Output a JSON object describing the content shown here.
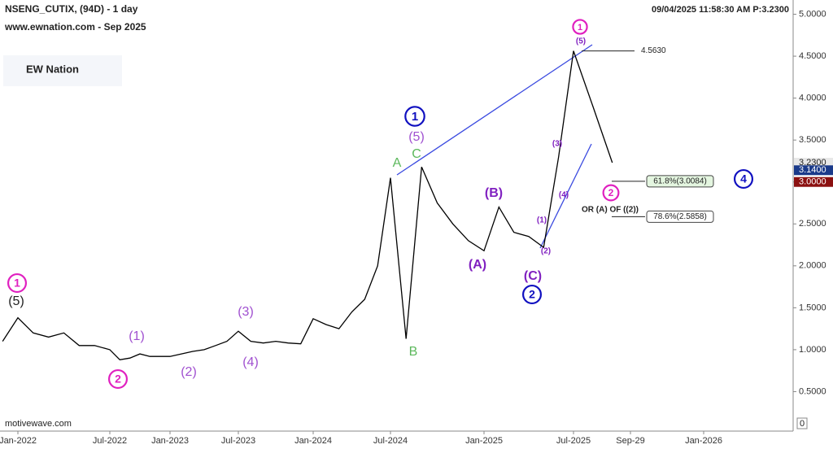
{
  "header": {
    "symbol": "NSENG_CUTIX, (94D) - 1 day",
    "site": "www.ewnation.com  - Sep 2025",
    "logo": "EW Nation",
    "timestamp": "09/04/2025 11:58:30 AM  P:3.2300",
    "footer": "motivewave.com",
    "volume_axis": "0"
  },
  "chart_data": {
    "type": "line",
    "color": "#000000",
    "x": [
      "2021-12",
      "2022-01",
      "2022-02",
      "2022-03",
      "2022-04",
      "2022-05",
      "2022-06",
      "2022-07",
      "2022-08",
      "2022-09",
      "2022-10",
      "2022-11",
      "2022-12",
      "2023-01",
      "2023-02",
      "2023-03",
      "2023-04",
      "2023-05",
      "2023-06",
      "2023-07",
      "2023-08",
      "2023-09",
      "2023-10",
      "2023-11",
      "2023-12",
      "2024-01",
      "2024-02",
      "2024-03",
      "2024-04",
      "2024-05",
      "2024-06",
      "2024-07",
      "2024-08",
      "2024-09",
      "2024-10",
      "2024-11",
      "2024-12",
      "2025-01",
      "2025-02",
      "2025-03",
      "2025-04",
      "2025-05",
      "2025-06",
      "2025-07",
      "2025-08",
      "2025-09"
    ],
    "values": [
      1.1,
      1.38,
      1.2,
      1.15,
      1.2,
      1.05,
      1.05,
      1.0,
      0.88,
      0.9,
      0.95,
      0.92,
      0.92,
      0.92,
      0.95,
      0.98,
      1.0,
      1.05,
      1.1,
      1.22,
      1.1,
      1.08,
      1.1,
      1.08,
      1.07,
      1.37,
      1.3,
      1.25,
      1.45,
      1.6,
      2.0,
      3.05,
      1.13,
      3.18,
      2.75,
      2.5,
      2.3,
      2.18,
      2.7,
      2.4,
      2.35,
      2.22,
      3.3,
      4.563,
      3.9,
      3.23
    ],
    "ylim": [
      0,
      5.17
    ],
    "yticks": [
      {
        "value": 0.5,
        "label": "0.5000"
      },
      {
        "value": 1,
        "label": "1.0000"
      },
      {
        "value": 1.5,
        "label": "1.5000"
      },
      {
        "value": 2,
        "label": "2.0000"
      },
      {
        "value": 2.5,
        "label": "2.5000"
      },
      {
        "value": 3,
        "label": "3.0000"
      },
      {
        "value": 3.5,
        "label": "3.5000"
      },
      {
        "value": 4,
        "label": "4.0000"
      },
      {
        "value": 4.5,
        "label": "4.5000"
      },
      {
        "value": 5,
        "label": "5.0000"
      }
    ],
    "xticks": [
      {
        "value": "2022-01",
        "label": "Jan-2022"
      },
      {
        "value": "2022-07",
        "label": "Jul-2022"
      },
      {
        "value": "2023-01",
        "label": "Jan-2023"
      },
      {
        "value": "2023-07",
        "label": "Jul-2023"
      },
      {
        "value": "2024-01",
        "label": "Jan-2024"
      },
      {
        "value": "2024-07",
        "label": "Jul-2024"
      },
      {
        "value": "2025-01",
        "label": "Jan-2025"
      },
      {
        "value": "2025-07",
        "label": "Jul-2025"
      },
      {
        "value": "2025-09-29",
        "label": "Sep-29"
      },
      {
        "value": "2026-01",
        "label": "Jan-2026"
      }
    ],
    "levels": [
      {
        "value": 4.563,
        "label": "4.5630"
      },
      {
        "value": 3.0084,
        "label": "61.8%(3.0084)"
      },
      {
        "value": 2.5858,
        "label": "78.6%(2.5858)"
      }
    ],
    "price_markers": [
      {
        "value": 3.23,
        "label": "3.2300",
        "color": "#e8e8e8",
        "text_color": "#222222"
      },
      {
        "value": 3.14,
        "label": "3.1400",
        "color": "#1a3a8a",
        "text_color": "#ffffff"
      },
      {
        "value": 3.0,
        "label": "3.0000",
        "color": "#8b1010",
        "text_color": "#ffffff"
      }
    ],
    "annotations": [
      {
        "text": "1",
        "color": "#e020c0",
        "circled": true
      },
      {
        "text": "(5)",
        "color": "#222222"
      },
      {
        "text": "2",
        "color": "#e020c0",
        "circled": true
      },
      {
        "text": "(1)",
        "color": "#a050d0"
      },
      {
        "text": "(2)",
        "color": "#a050d0"
      },
      {
        "text": "(3)",
        "color": "#a050d0"
      },
      {
        "text": "(4)",
        "color": "#a050d0"
      },
      {
        "text": "A",
        "color": "#5cb85c"
      },
      {
        "text": "B",
        "color": "#5cb85c"
      },
      {
        "text": "C",
        "color": "#5cb85c"
      },
      {
        "text": "1",
        "color": "#1010c0",
        "circled": true
      },
      {
        "text": "(5)",
        "color": "#a050d0"
      },
      {
        "text": "(B)",
        "color": "#8020c0"
      },
      {
        "text": "(A)",
        "color": "#8020c0"
      },
      {
        "text": "(C)",
        "color": "#8020c0"
      },
      {
        "text": "2",
        "color": "#1010c0",
        "circled": true
      },
      {
        "text": "(1)",
        "color": "#8020c0"
      },
      {
        "text": "(2)",
        "color": "#8020c0"
      },
      {
        "text": "(3)",
        "color": "#8020c0"
      },
      {
        "text": "(4)",
        "color": "#8020c0"
      },
      {
        "text": "(5)",
        "color": "#8020c0"
      },
      {
        "text": "1",
        "color": "#e020c0",
        "circled": true
      },
      {
        "text": "2",
        "color": "#e020c0",
        "circled": true
      },
      {
        "text": "4",
        "color": "#1010c0",
        "circled": true
      },
      {
        "text": "OR (A) OF ((2))",
        "color": "#222222"
      }
    ]
  }
}
